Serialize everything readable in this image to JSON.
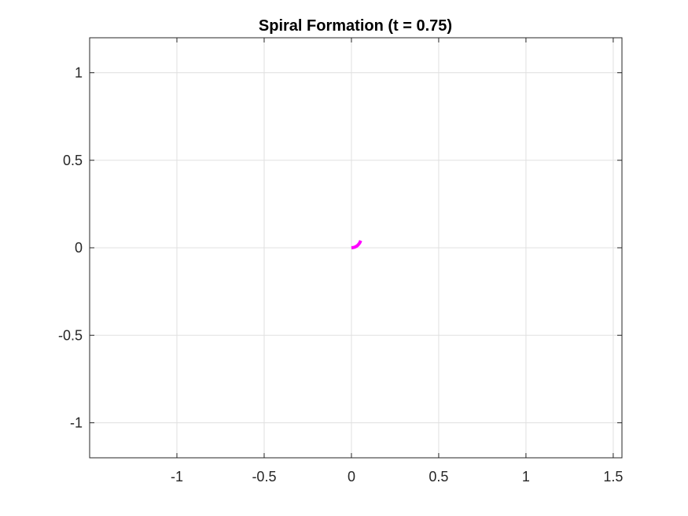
{
  "chart_data": {
    "type": "line",
    "title": "Spiral Formation (t = 0.75)",
    "xlabel": "",
    "ylabel": "",
    "xlim": [
      -1.5,
      1.55
    ],
    "ylim": [
      -1.2,
      1.2
    ],
    "grid": true,
    "x_ticks": [
      -1,
      -0.5,
      0,
      0.5,
      1,
      1.5
    ],
    "x_tick_labels": [
      "-1",
      "-0.5",
      "0",
      "0.5",
      "1",
      "1.5"
    ],
    "y_ticks": [
      -1,
      -0.5,
      0,
      0.5,
      1
    ],
    "y_tick_labels": [
      "-1",
      "-0.5",
      "0",
      "0.5",
      "1"
    ],
    "series": [
      {
        "color": "#ff00ff",
        "x": [
          0.0,
          0.008,
          0.018,
          0.028,
          0.036,
          0.043,
          0.049,
          0.053
        ],
        "y": [
          0.0,
          0.001,
          0.003,
          0.008,
          0.014,
          0.022,
          0.031,
          0.041
        ]
      }
    ]
  }
}
